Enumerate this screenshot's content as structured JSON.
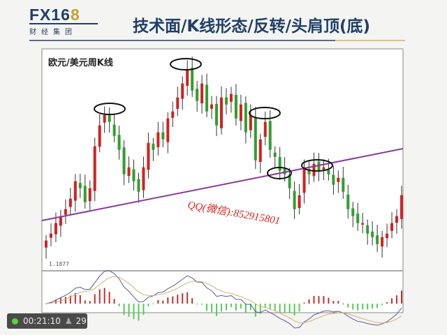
{
  "header": {
    "logo_main": "FX16",
    "logo_accent": "8",
    "logo_sub": "财经集团",
    "title": "技术面/K线形态/反转/头肩顶(底)"
  },
  "chart_data": {
    "type": "candlestick",
    "title": "欧元/美元周K线",
    "low_label": "1.1877",
    "watermark": "QQ(微信):852915801",
    "closes": [
      1.218,
      1.228,
      1.243,
      1.253,
      1.263,
      1.278,
      1.303,
      1.293,
      1.273,
      1.293,
      1.353,
      1.383,
      1.398,
      1.388,
      1.368,
      1.348,
      1.313,
      1.323,
      1.303,
      1.288,
      1.323,
      1.358,
      1.348,
      1.373,
      1.363,
      1.393,
      1.403,
      1.423,
      1.443,
      1.463,
      1.433,
      1.418,
      1.443,
      1.403,
      1.413,
      1.383,
      1.423,
      1.413,
      1.428,
      1.393,
      1.413,
      1.373,
      1.398,
      1.333,
      1.363,
      1.388,
      1.348,
      1.338,
      1.318,
      1.313,
      1.293,
      1.263,
      1.283,
      1.323,
      1.313,
      1.328,
      1.318,
      1.323,
      1.313,
      1.298,
      1.308,
      1.288,
      1.263,
      1.253,
      1.243,
      1.243,
      1.228,
      1.223,
      1.213,
      1.223,
      1.228,
      1.243,
      1.253,
      1.283
    ],
    "annotations": [
      "left-shoulder-circle",
      "head-circle",
      "right-shoulder-top-circle",
      "neckline-break-circle",
      "retest-circle"
    ],
    "neckline_color": "#8a3a9a",
    "up_color": "#d42020",
    "down_color": "#2ea02e",
    "indicator": "MACD"
  },
  "overlay": {
    "time": "00:21:10",
    "viewers": "29",
    "status_color": "#5fcf3a"
  }
}
